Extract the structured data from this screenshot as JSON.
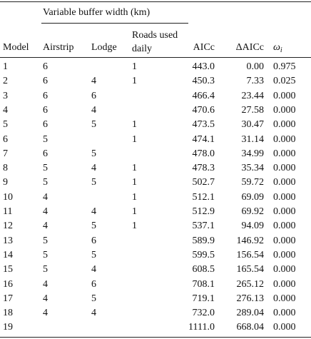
{
  "table": {
    "group_header": "Variable buffer width (km)",
    "columns": [
      "Model",
      "Airstrip",
      "Lodge",
      "Roads used daily",
      "AICc",
      "ΔAICc",
      {
        "symbol": "ω",
        "subscript": "i"
      }
    ],
    "rows": [
      [
        "1",
        "6",
        null,
        "1",
        "443.0",
        "0.00",
        "0.975"
      ],
      [
        "2",
        "6",
        "4",
        "1",
        "450.3",
        "7.33",
        "0.025"
      ],
      [
        "3",
        "6",
        "6",
        null,
        "466.4",
        "23.44",
        "0.000"
      ],
      [
        "4",
        "6",
        "4",
        null,
        "470.6",
        "27.58",
        "0.000"
      ],
      [
        "5",
        "6",
        "5",
        "1",
        "473.5",
        "30.47",
        "0.000"
      ],
      [
        "6",
        "5",
        null,
        "1",
        "474.1",
        "31.14",
        "0.000"
      ],
      [
        "7",
        "6",
        "5",
        null,
        "478.0",
        "34.99",
        "0.000"
      ],
      [
        "8",
        "5",
        "4",
        "1",
        "478.3",
        "35.34",
        "0.000"
      ],
      [
        "9",
        "5",
        "5",
        "1",
        "502.7",
        "59.72",
        "0.000"
      ],
      [
        "10",
        "4",
        null,
        "1",
        "512.1",
        "69.09",
        "0.000"
      ],
      [
        "11",
        "4",
        "4",
        "1",
        "512.9",
        "69.92",
        "0.000"
      ],
      [
        "12",
        "4",
        "5",
        "1",
        "537.1",
        "94.09",
        "0.000"
      ],
      [
        "13",
        "5",
        "6",
        null,
        "589.9",
        "146.92",
        "0.000"
      ],
      [
        "14",
        "5",
        "5",
        null,
        "599.5",
        "156.54",
        "0.000"
      ],
      [
        "15",
        "5",
        "4",
        null,
        "608.5",
        "165.54",
        "0.000"
      ],
      [
        "16",
        "4",
        "6",
        null,
        "708.1",
        "265.12",
        "0.000"
      ],
      [
        "17",
        "4",
        "5",
        null,
        "719.1",
        "276.13",
        "0.000"
      ],
      [
        "18",
        "4",
        "4",
        null,
        "732.0",
        "289.04",
        "0.000"
      ],
      [
        "19",
        null,
        null,
        null,
        "1111.0",
        "668.04",
        "0.000"
      ]
    ]
  }
}
